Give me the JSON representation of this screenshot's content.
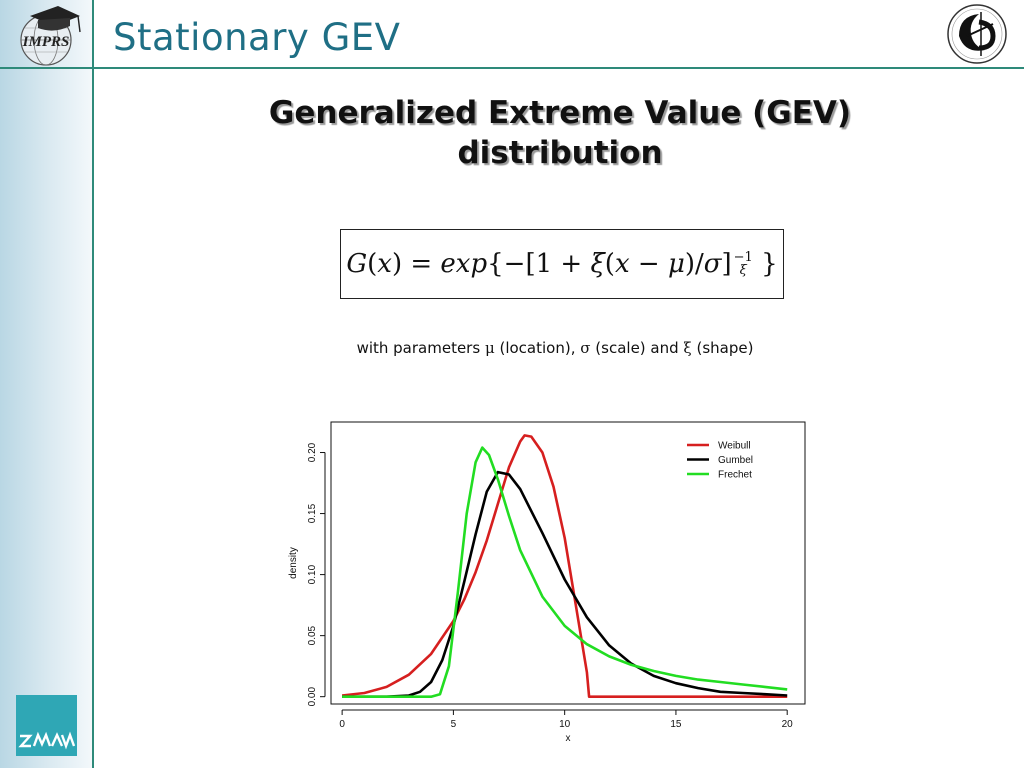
{
  "slide": {
    "title": "Stationary GEV",
    "logo_left_text": "IMPRS",
    "logo_bottom_text": "ZMAW",
    "heading_line1": "Generalized Extreme Value (GEV)",
    "heading_line2": "distribution",
    "params": {
      "prefix": "with parameters",
      "mu": "μ",
      "mu_desc": "(location),",
      "sigma": "σ",
      "sigma_desc": "(scale) and",
      "xi": "ξ",
      "xi_desc": "(shape)"
    }
  },
  "colors": {
    "accent": "#2e8a7a",
    "title_color": "#1f6f85",
    "weibull": "#d61f1f",
    "gumbel": "#000000",
    "frechet": "#22dd22"
  },
  "chart_data": {
    "type": "line",
    "xlabel": "x",
    "ylabel": "density",
    "xlim": [
      -0.5,
      20.8
    ],
    "ylim": [
      -0.006,
      0.225
    ],
    "xticks": [
      0,
      5,
      10,
      15,
      20
    ],
    "yticks": [
      0.0,
      0.05,
      0.1,
      0.15,
      0.2
    ],
    "xtick_labels": [
      "0",
      "5",
      "10",
      "15",
      "20"
    ],
    "ytick_labels": [
      "0.00",
      "0.05",
      "0.10",
      "0.15",
      "0.20"
    ],
    "legend_position": "top-right",
    "grid": false,
    "series": [
      {
        "name": "Weibull",
        "color": "#d61f1f",
        "x": [
          0,
          1,
          2,
          3,
          4,
          5,
          5.5,
          6,
          6.5,
          7,
          7.5,
          8,
          8.2,
          8.5,
          9,
          9.5,
          10,
          10.5,
          11,
          11.1,
          12,
          14,
          16,
          18,
          20
        ],
        "y": [
          0.001,
          0.003,
          0.008,
          0.018,
          0.035,
          0.062,
          0.08,
          0.102,
          0.128,
          0.158,
          0.188,
          0.209,
          0.214,
          0.213,
          0.2,
          0.172,
          0.13,
          0.075,
          0.02,
          0.0,
          0.0,
          0.0,
          0.0,
          0.0,
          0.0
        ]
      },
      {
        "name": "Gumbel",
        "color": "#000000",
        "x": [
          0,
          2,
          3,
          3.5,
          4,
          4.5,
          5,
          5.5,
          6,
          6.5,
          7,
          7.5,
          8,
          9,
          10,
          11,
          12,
          13,
          14,
          15,
          16,
          17,
          18,
          19,
          20
        ],
        "y": [
          0.0,
          0.0,
          0.001,
          0.004,
          0.012,
          0.03,
          0.058,
          0.095,
          0.133,
          0.168,
          0.184,
          0.182,
          0.17,
          0.134,
          0.096,
          0.065,
          0.042,
          0.027,
          0.017,
          0.011,
          0.007,
          0.004,
          0.003,
          0.002,
          0.001
        ]
      },
      {
        "name": "Frechet",
        "color": "#22dd22",
        "x": [
          0,
          3,
          4,
          4.4,
          4.8,
          5.2,
          5.6,
          6,
          6.3,
          6.6,
          7,
          7.5,
          8,
          9,
          10,
          11,
          12,
          13,
          14,
          15,
          16,
          17,
          18,
          19,
          20
        ],
        "y": [
          0.0,
          0.0,
          0.0,
          0.002,
          0.025,
          0.085,
          0.15,
          0.192,
          0.204,
          0.198,
          0.178,
          0.148,
          0.12,
          0.082,
          0.058,
          0.043,
          0.033,
          0.026,
          0.021,
          0.017,
          0.014,
          0.012,
          0.01,
          0.008,
          0.006
        ]
      }
    ]
  }
}
